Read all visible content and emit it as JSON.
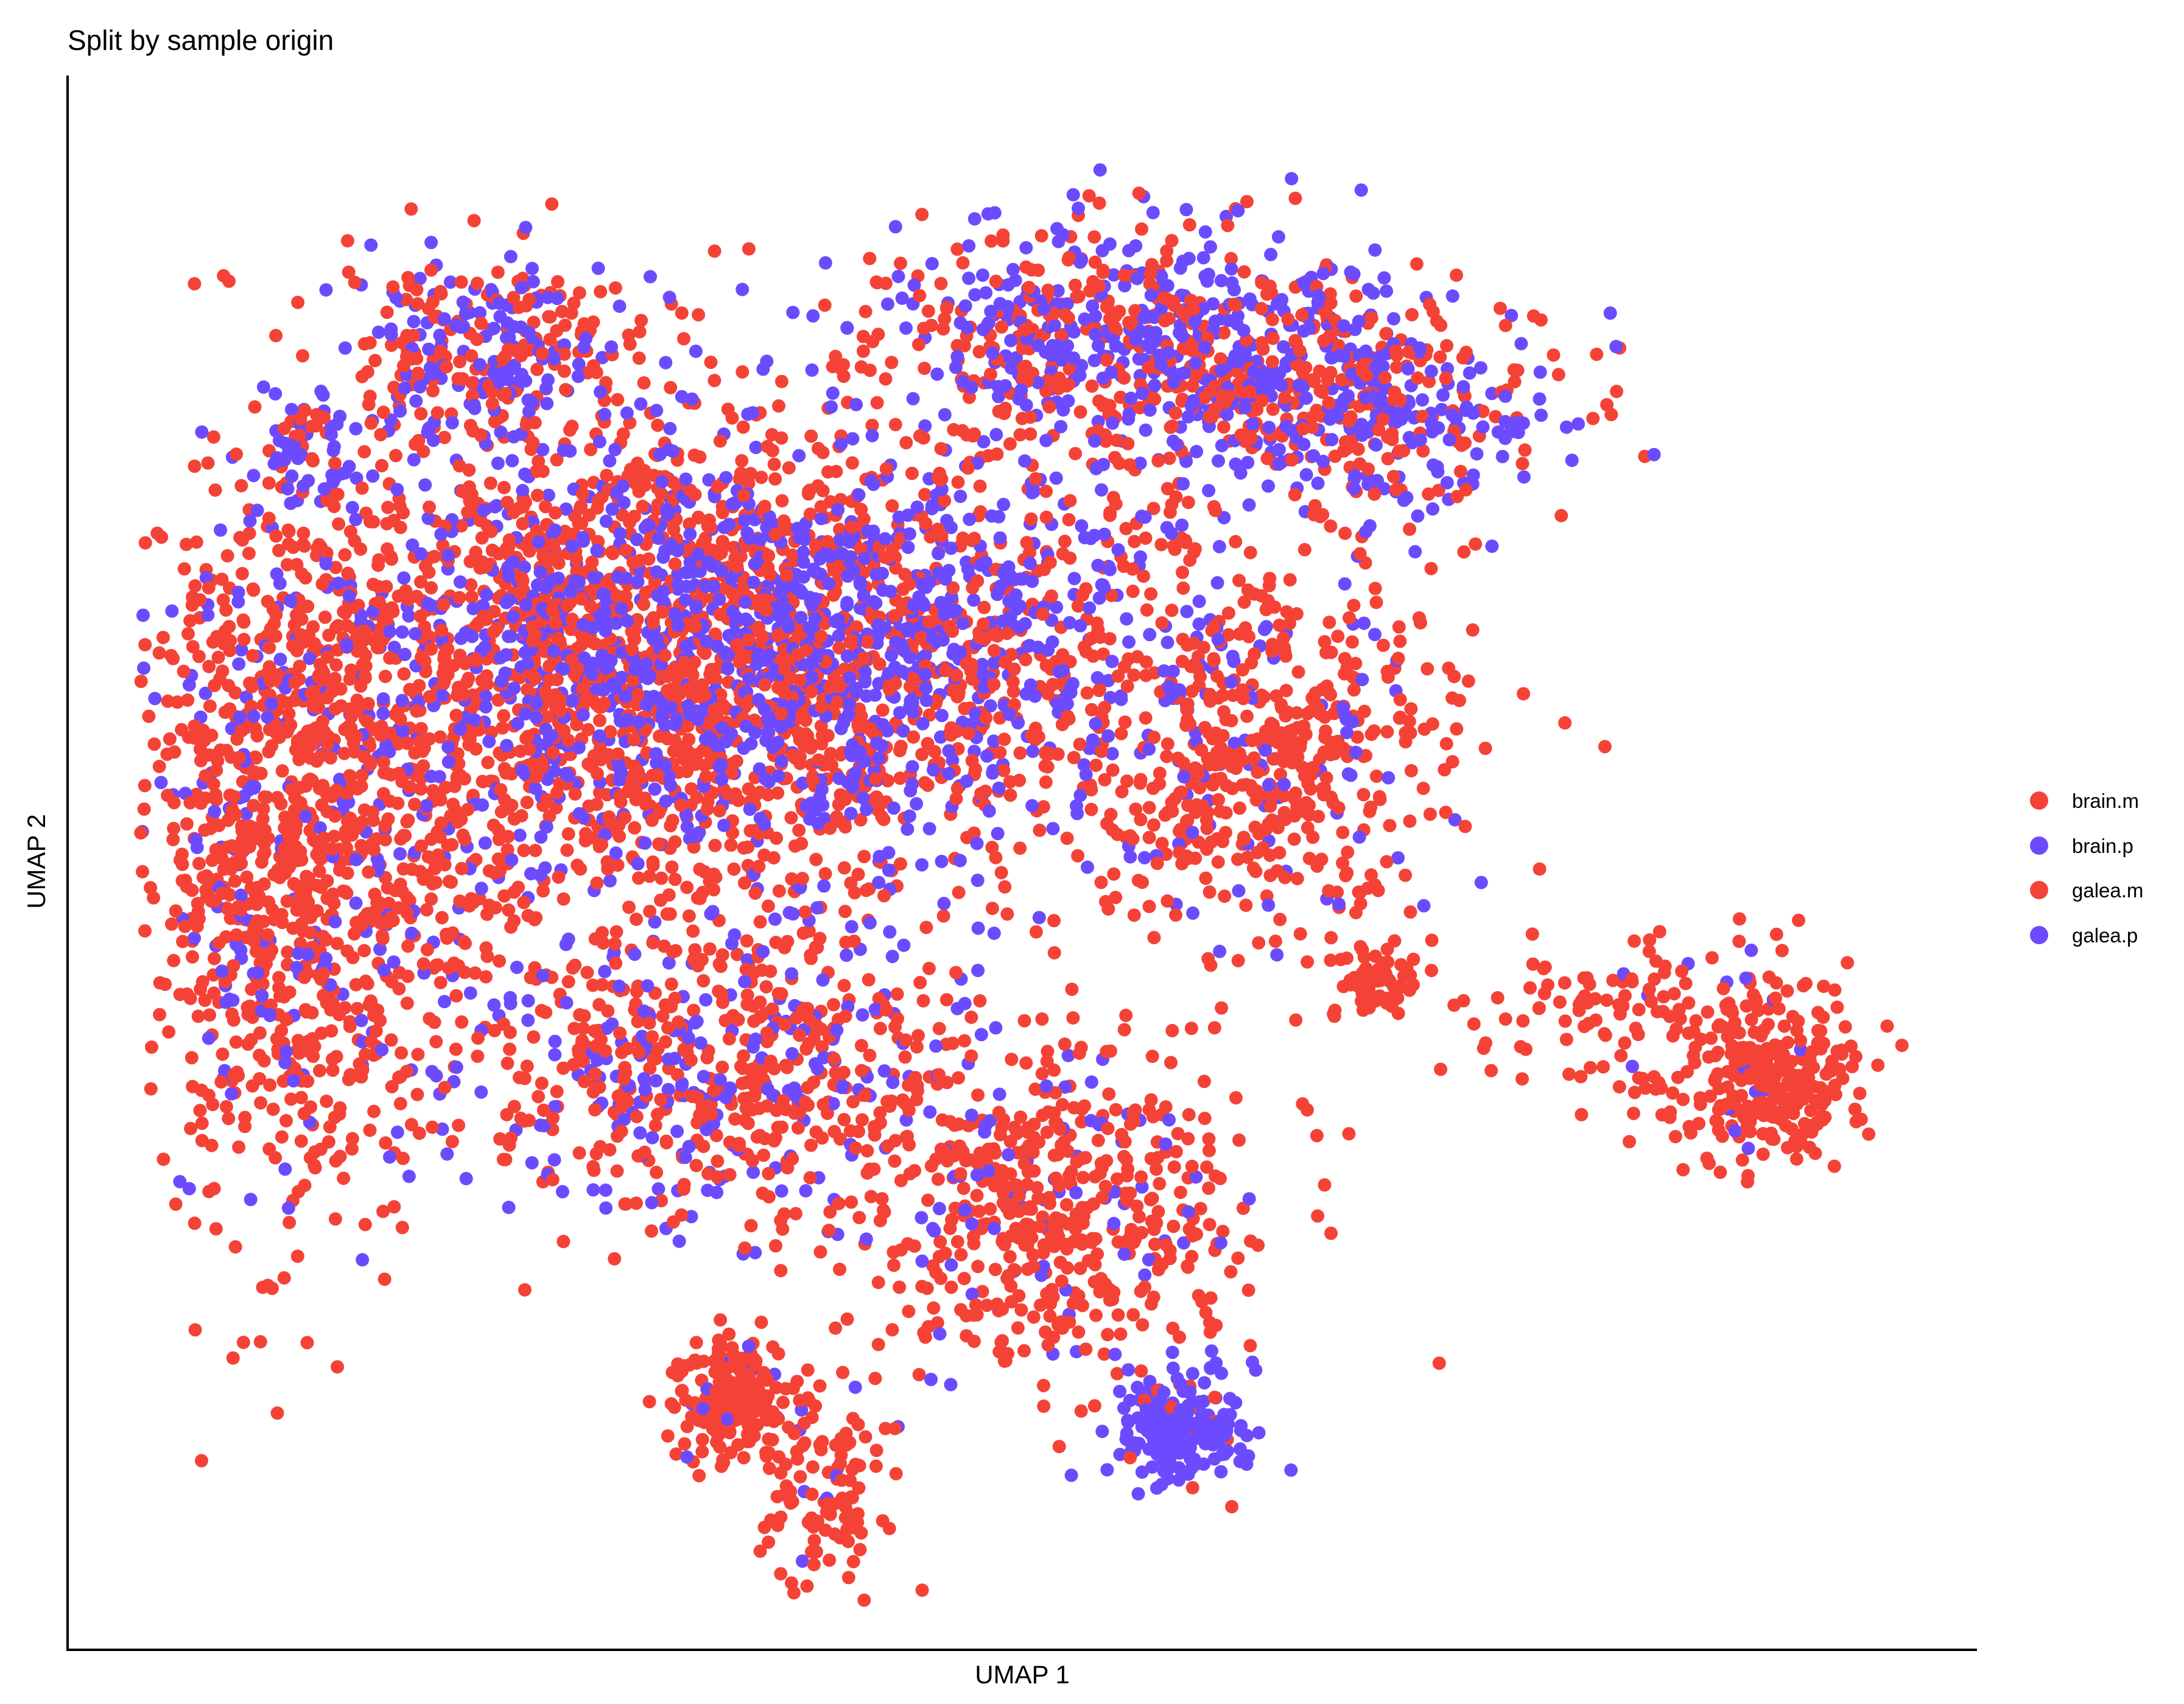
{
  "chart_data": {
    "type": "scatter",
    "title": "Split by sample origin",
    "xlabel": "UMAP 1",
    "ylabel": "UMAP 2",
    "xlim": [
      0,
      100
    ],
    "ylim": [
      0,
      100
    ],
    "ticks_shown": false,
    "grid": false,
    "legend_position": "right",
    "colors": {
      "brain.m": "#F44336",
      "brain.p": "#6C4BFF",
      "galea.m": "#F44336",
      "galea.p": "#6C4BFF"
    },
    "series": [
      {
        "name": "brain.m",
        "color": "#F44336"
      },
      {
        "name": "brain.p",
        "color": "#6C4BFF"
      },
      {
        "name": "galea.m",
        "color": "#F44336"
      },
      {
        "name": "galea.p",
        "color": "#6C4BFF"
      }
    ],
    "clusters": [
      {
        "label": "main left-center mass",
        "cx": 28,
        "cy": 64,
        "sx": 13,
        "sy": 10,
        "n": 2200,
        "p_blue": 0.25
      },
      {
        "label": "upper central band",
        "cx": 38,
        "cy": 66,
        "sx": 12,
        "sy": 6,
        "n": 1400,
        "p_blue": 0.55
      },
      {
        "label": "far left edge",
        "cx": 9,
        "cy": 50,
        "sx": 4,
        "sy": 12,
        "n": 900,
        "p_blue": 0.15
      },
      {
        "label": "top-left small cluster",
        "cx": 20,
        "cy": 86,
        "sx": 3.5,
        "sy": 3,
        "n": 260,
        "p_blue": 0.45
      },
      {
        "label": "tiny top-left tip",
        "cx": 10,
        "cy": 79,
        "sx": 1.5,
        "sy": 2,
        "n": 60,
        "p_blue": 0.7
      },
      {
        "label": "upper right arc",
        "cx": 55,
        "cy": 86,
        "sx": 7,
        "sy": 4,
        "n": 600,
        "p_blue": 0.5
      },
      {
        "label": "right upper arc",
        "cx": 68,
        "cy": 82,
        "sx": 6,
        "sy": 4,
        "n": 500,
        "p_blue": 0.5
      },
      {
        "label": "right dense cluster",
        "cx": 64,
        "cy": 58,
        "sx": 5,
        "sy": 6,
        "n": 500,
        "p_blue": 0.15
      },
      {
        "label": "lower middle cluster",
        "cx": 33,
        "cy": 37,
        "sx": 7,
        "sy": 5,
        "n": 600,
        "p_blue": 0.35
      },
      {
        "label": "lower center-right",
        "cx": 52,
        "cy": 28,
        "sx": 5.5,
        "sy": 6,
        "n": 550,
        "p_blue": 0.12
      },
      {
        "label": "bottom purple cluster",
        "cx": 59,
        "cy": 14,
        "sx": 1.8,
        "sy": 1.8,
        "n": 220,
        "p_blue": 0.92
      },
      {
        "label": "bottom-left dense spot",
        "cx": 34,
        "cy": 16,
        "sx": 1.6,
        "sy": 2,
        "n": 200,
        "p_blue": 0.05
      },
      {
        "label": "lower tail",
        "cx": 39,
        "cy": 10,
        "sx": 1.8,
        "sy": 3.5,
        "n": 120,
        "p_blue": 0.05
      },
      {
        "label": "right isolated blob",
        "cx": 70,
        "cy": 43.5,
        "sx": 1.3,
        "sy": 1.2,
        "n": 70,
        "p_blue": 0.0
      },
      {
        "label": "far right cluster",
        "cx": 92,
        "cy": 37,
        "sx": 2.3,
        "sy": 2.6,
        "n": 260,
        "p_blue": 0.03
      },
      {
        "label": "right tail",
        "cx": 85,
        "cy": 41,
        "sx": 5,
        "sy": 3,
        "n": 140,
        "p_blue": 0.02
      }
    ]
  }
}
